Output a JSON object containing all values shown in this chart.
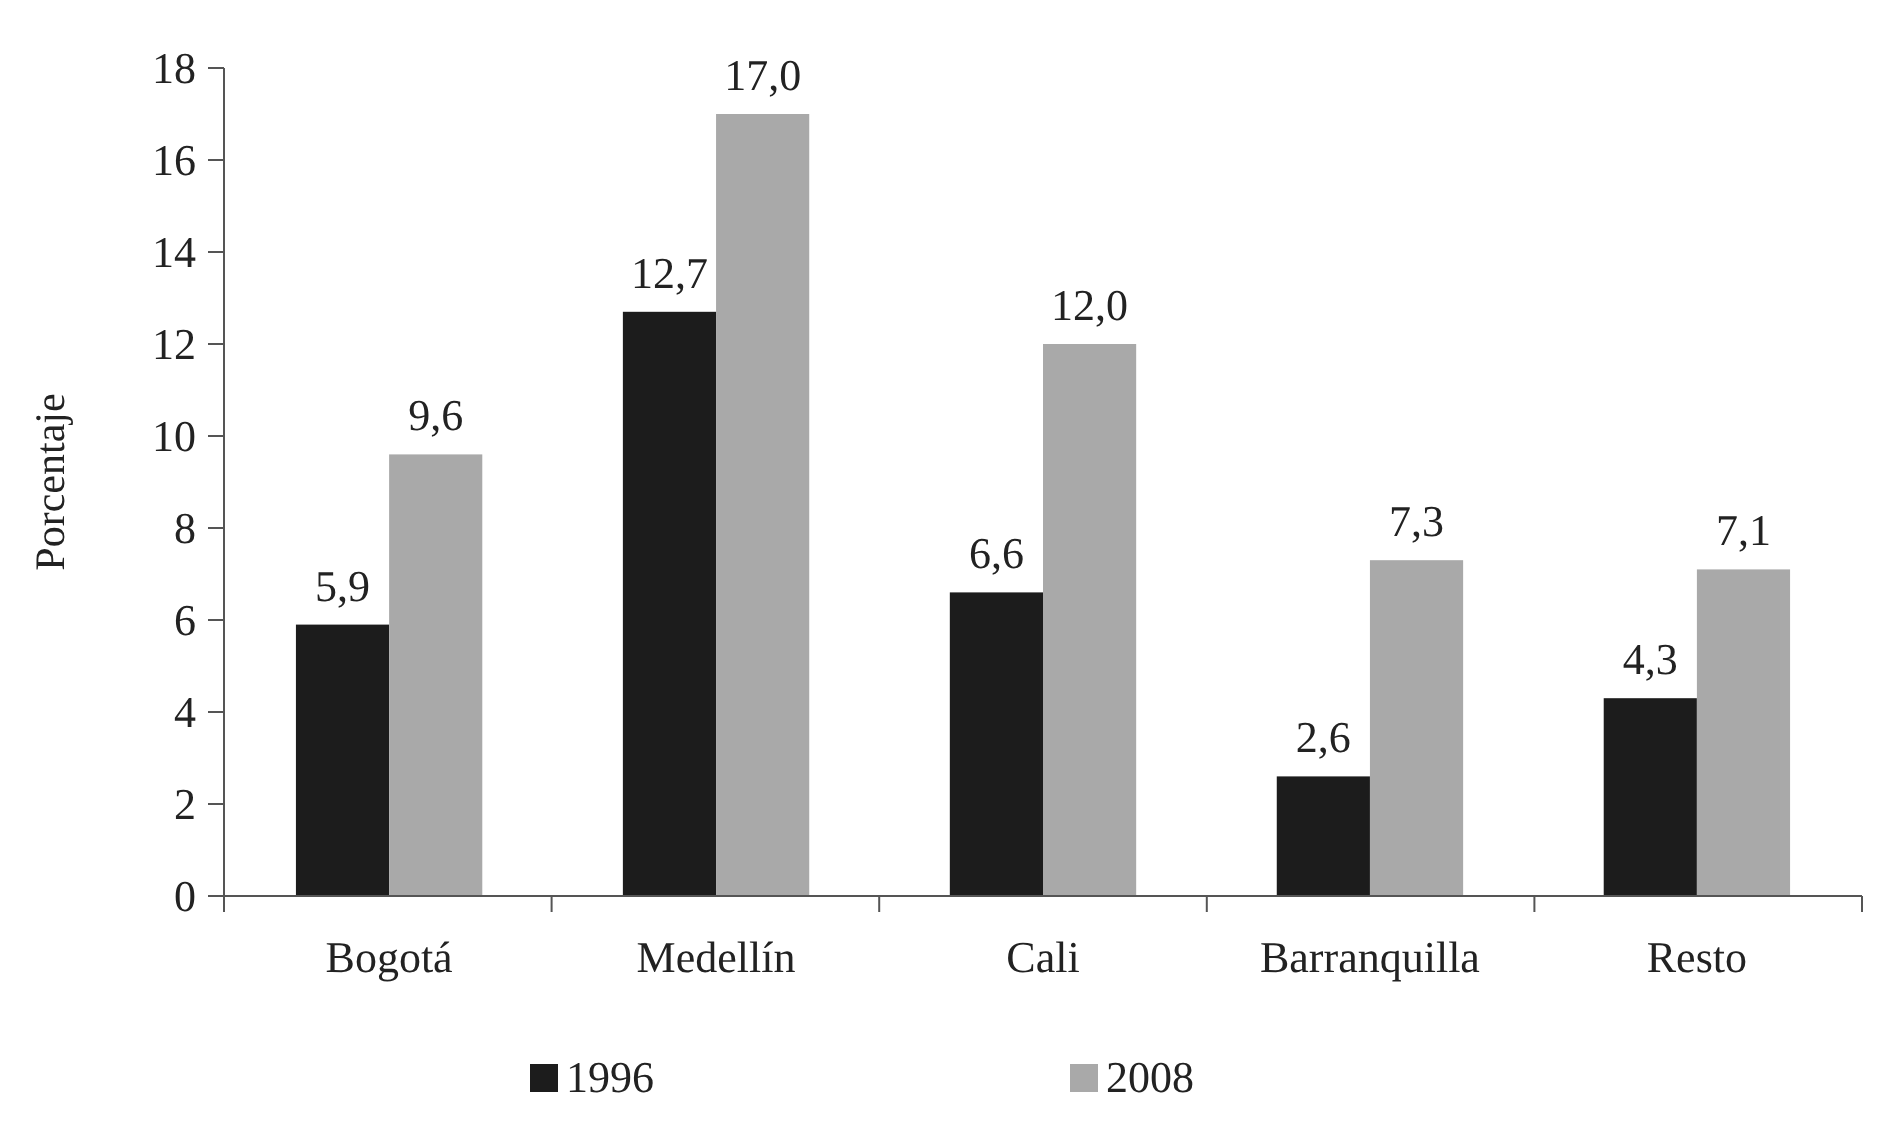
{
  "chart_data": {
    "type": "bar",
    "ylabel": "Porcentaje",
    "categories": [
      "Bogotá",
      "Medellín",
      "Cali",
      "Barranquilla",
      "Resto"
    ],
    "series": [
      {
        "name": "1996",
        "color": "#1c1c1c",
        "values": [
          5.9,
          12.7,
          6.6,
          2.6,
          4.3
        ],
        "value_labels": [
          "5,9",
          "12,7",
          "6,6",
          "2,6",
          "4,3"
        ]
      },
      {
        "name": "2008",
        "color": "#a9a9a9",
        "values": [
          9.6,
          17.0,
          12.0,
          7.3,
          7.1
        ],
        "value_labels": [
          "9,6",
          "17,0",
          "12,0",
          "7,3",
          "7,1"
        ]
      }
    ],
    "ylim": [
      0,
      18
    ],
    "yticks": [
      0,
      2,
      4,
      6,
      8,
      10,
      12,
      14,
      16,
      18
    ],
    "grid": false,
    "legend": "bottom"
  }
}
